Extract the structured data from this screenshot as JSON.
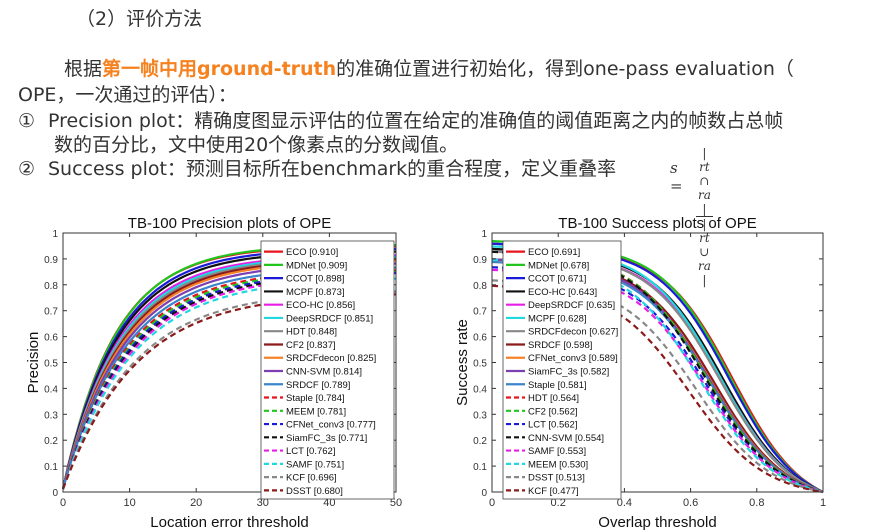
{
  "section_heading": "（2）评价方法",
  "intro": {
    "prefix": "根据",
    "highlight": "第一帧中用ground-truth",
    "suffix": "的准确位置进行初始化，得到one-pass evaluation（",
    "line2": "OPE，一次通过的评估）："
  },
  "items": [
    {
      "marker": "①",
      "line1": "Precision plot：精确度图显示评估的位置在给定的准确值的阈值距离之内的帧数占总帧",
      "line2": "数的百分比，文中使用20个像素点的分数阈值。"
    },
    {
      "marker": "②",
      "line1": "Success plot：预测目标所在benchmark的重合程度，定义重叠率"
    }
  ],
  "formula": {
    "lhs": "s =",
    "numerator": "| rt ∩ ra |",
    "denominator": "| rt ∪ ra |"
  },
  "chart_data": [
    {
      "type": "line",
      "title": "TB-100   Precision plots of OPE",
      "xlabel": "Location error threshold",
      "ylabel": "Precision",
      "xlim": [
        0,
        50
      ],
      "ylim": [
        0,
        1
      ],
      "xticks": [
        "0",
        "10",
        "20",
        "30",
        "40",
        "50"
      ],
      "yticks": [
        "0",
        "0.1",
        "0.2",
        "0.3",
        "0.4",
        "0.5",
        "0.6",
        "0.7",
        "0.8",
        "0.9",
        "1"
      ],
      "grid": false,
      "legend_position": "right",
      "series": [
        {
          "name": "ECO",
          "score": "0.910",
          "color": "#e8141c",
          "dash": false,
          "final": 0.95
        },
        {
          "name": "MDNet",
          "score": "0.909",
          "color": "#22c41e",
          "dash": false,
          "final": 0.955
        },
        {
          "name": "CCOT",
          "score": "0.898",
          "color": "#1a1ad8",
          "dash": false,
          "final": 0.94
        },
        {
          "name": "MCPF",
          "score": "0.873",
          "color": "#111111",
          "dash": false,
          "final": 0.93
        },
        {
          "name": "ECO-HC",
          "score": "0.856",
          "color": "#e81ee8",
          "dash": false,
          "final": 0.915
        },
        {
          "name": "DeepSRDCF",
          "score": "0.851",
          "color": "#22d8e0",
          "dash": false,
          "final": 0.91
        },
        {
          "name": "HDT",
          "score": "0.848",
          "color": "#888888",
          "dash": false,
          "final": 0.905
        },
        {
          "name": "CF2",
          "score": "0.837",
          "color": "#8b1a1a",
          "dash": false,
          "final": 0.9
        },
        {
          "name": "SRDCFdecon",
          "score": "0.825",
          "color": "#f5822a",
          "dash": false,
          "final": 0.895
        },
        {
          "name": "CNN-SVM",
          "score": "0.814",
          "color": "#7c3fb0",
          "dash": false,
          "final": 0.885
        },
        {
          "name": "SRDCF",
          "score": "0.789",
          "color": "#3b84c9",
          "dash": false,
          "final": 0.87
        },
        {
          "name": "Staple",
          "score": "0.784",
          "color": "#e8141c",
          "dash": true,
          "final": 0.86
        },
        {
          "name": "MEEM",
          "score": "0.781",
          "color": "#22c41e",
          "dash": true,
          "final": 0.855
        },
        {
          "name": "CFNet_conv3",
          "score": "0.777",
          "color": "#1a1ad8",
          "dash": true,
          "final": 0.85
        },
        {
          "name": "SiamFC_3s",
          "score": "0.771",
          "color": "#111111",
          "dash": true,
          "final": 0.845
        },
        {
          "name": "LCT",
          "score": "0.762",
          "color": "#e81ee8",
          "dash": true,
          "final": 0.84
        },
        {
          "name": "SAMF",
          "score": "0.751",
          "color": "#22d8e0",
          "dash": true,
          "final": 0.83
        },
        {
          "name": "KCF",
          "score": "0.696",
          "color": "#888888",
          "dash": true,
          "final": 0.78
        },
        {
          "name": "DSST",
          "score": "0.680",
          "color": "#8b1a1a",
          "dash": true,
          "final": 0.77
        }
      ]
    },
    {
      "type": "line",
      "title": "TB-100   Success plots of OPE",
      "xlabel": "Overlap threshold",
      "ylabel": "Success rate",
      "xlim": [
        0,
        1
      ],
      "ylim": [
        0,
        1
      ],
      "xticks": [
        "0",
        "0.2",
        "0.4",
        "0.6",
        "0.8",
        "1"
      ],
      "yticks": [
        "0",
        "0.1",
        "0.2",
        "0.3",
        "0.4",
        "0.5",
        "0.6",
        "0.7",
        "0.8",
        "0.9",
        "1"
      ],
      "grid": false,
      "legend_position": "left",
      "series": [
        {
          "name": "ECO",
          "score": "0.691",
          "color": "#e8141c",
          "dash": false,
          "start": 0.96
        },
        {
          "name": "MDNet",
          "score": "0.678",
          "color": "#22c41e",
          "dash": false,
          "start": 0.97
        },
        {
          "name": "CCOT",
          "score": "0.671",
          "color": "#1a1ad8",
          "dash": false,
          "start": 0.96
        },
        {
          "name": "ECO-HC",
          "score": "0.643",
          "color": "#111111",
          "dash": false,
          "start": 0.94
        },
        {
          "name": "DeepSRDCF",
          "score": "0.635",
          "color": "#e81ee8",
          "dash": false,
          "start": 0.93
        },
        {
          "name": "MCPF",
          "score": "0.628",
          "color": "#22d8e0",
          "dash": false,
          "start": 0.95
        },
        {
          "name": "SRDCFdecon",
          "score": "0.627",
          "color": "#888888",
          "dash": false,
          "start": 0.93
        },
        {
          "name": "SRDCF",
          "score": "0.598",
          "color": "#8b1a1a",
          "dash": false,
          "start": 0.9
        },
        {
          "name": "CFNet_conv3",
          "score": "0.589",
          "color": "#f5822a",
          "dash": false,
          "start": 0.89
        },
        {
          "name": "SiamFC_3s",
          "score": "0.582",
          "color": "#7c3fb0",
          "dash": false,
          "start": 0.9
        },
        {
          "name": "Staple",
          "score": "0.581",
          "color": "#3b84c9",
          "dash": false,
          "start": 0.89
        },
        {
          "name": "HDT",
          "score": "0.564",
          "color": "#e8141c",
          "dash": true,
          "start": 0.93
        },
        {
          "name": "CF2",
          "score": "0.562",
          "color": "#22c41e",
          "dash": true,
          "start": 0.93
        },
        {
          "name": "LCT",
          "score": "0.562",
          "color": "#1a1ad8",
          "dash": true,
          "start": 0.87
        },
        {
          "name": "CNN-SVM",
          "score": "0.554",
          "color": "#111111",
          "dash": true,
          "start": 0.93
        },
        {
          "name": "SAMF",
          "score": "0.553",
          "color": "#e81ee8",
          "dash": true,
          "start": 0.86
        },
        {
          "name": "MEEM",
          "score": "0.530",
          "color": "#22d8e0",
          "dash": true,
          "start": 0.9
        },
        {
          "name": "DSST",
          "score": "0.513",
          "color": "#888888",
          "dash": true,
          "start": 0.82
        },
        {
          "name": "KCF",
          "score": "0.477",
          "color": "#8b1a1a",
          "dash": true,
          "start": 0.8
        }
      ]
    }
  ]
}
